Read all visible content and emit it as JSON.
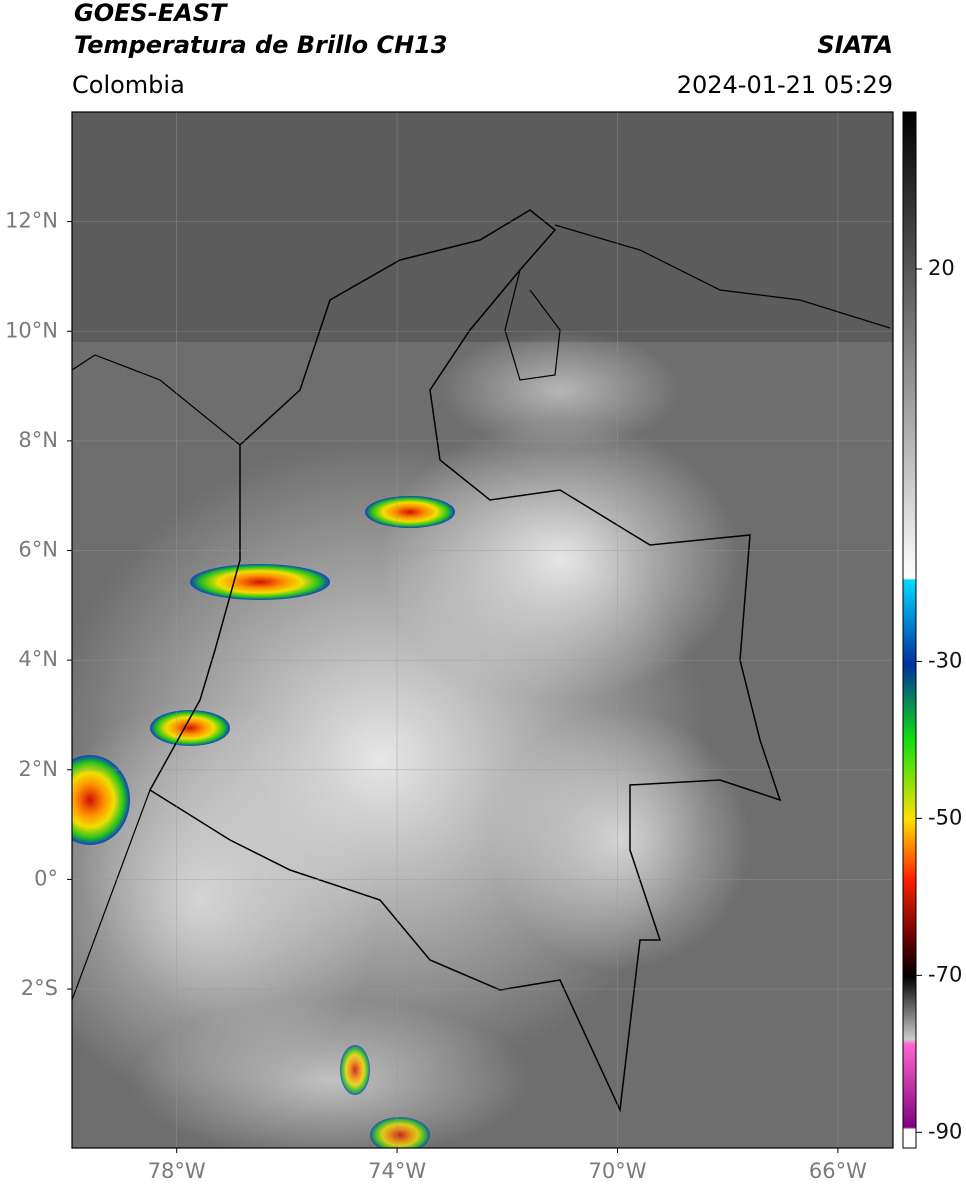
{
  "header": {
    "line1": "GOES-EAST",
    "line2": "Temperatura de Brillo CH13",
    "source": "SIATA",
    "region": "Colombia",
    "datetime": "2024-01-21 05:29"
  },
  "map": {
    "lon_range": [
      -79.9,
      -65.0
    ],
    "lat_range": [
      -4.9,
      14.0
    ],
    "lon_ticks": [
      {
        "value": -78,
        "label": "78°W"
      },
      {
        "value": -74,
        "label": "74°W"
      },
      {
        "value": -70,
        "label": "70°W"
      },
      {
        "value": -66,
        "label": "66°W"
      }
    ],
    "lat_ticks": [
      {
        "value": 12,
        "label": "12°N"
      },
      {
        "value": 10,
        "label": "10°N"
      },
      {
        "value": 8,
        "label": "8°N"
      },
      {
        "value": 6,
        "label": "6°N"
      },
      {
        "value": 4,
        "label": "4°N"
      },
      {
        "value": 2,
        "label": "2°N"
      },
      {
        "value": 0,
        "label": "0°"
      },
      {
        "value": -2,
        "label": "2°S"
      }
    ],
    "grid": true
  },
  "colorbar": {
    "range": [
      -92,
      40
    ],
    "ticks": [
      20,
      -30,
      -50,
      -70,
      -90
    ]
  }
}
